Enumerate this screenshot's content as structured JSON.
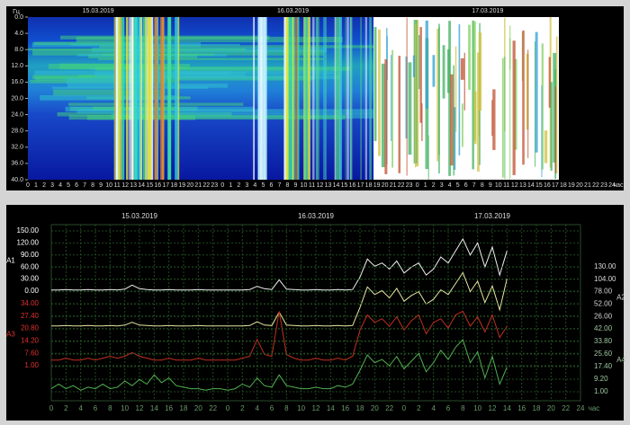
{
  "chart_data": [
    {
      "type": "spectrogram",
      "y_label": "Гц",
      "dates": [
        "15.03.2019",
        "16.03.2019",
        "17.03.2019"
      ],
      "x_unit": "час",
      "xlim": [
        0,
        72
      ],
      "xticks_by_day": [
        [
          0,
          1,
          2,
          3,
          4,
          5,
          6,
          7,
          8,
          9,
          10,
          11,
          12,
          13,
          14,
          15,
          16,
          17,
          18,
          19,
          20,
          21,
          22,
          23
        ],
        [
          0,
          1,
          2,
          3,
          4,
          5,
          6,
          7,
          8,
          9,
          10,
          11,
          12,
          13,
          14,
          15,
          16,
          17,
          18,
          19,
          20,
          21,
          22,
          23
        ],
        [
          0,
          1,
          2,
          3,
          4,
          5,
          6,
          7,
          8,
          9,
          10,
          11,
          12,
          13,
          14,
          15,
          16,
          17,
          18,
          19,
          20,
          21,
          22,
          23,
          24
        ]
      ],
      "ylim": [
        0,
        40
      ],
      "yticks": [
        {
          "value": 0,
          "label": "0.0"
        },
        {
          "value": 4,
          "label": "4.0"
        },
        {
          "value": 8,
          "label": "8.0"
        },
        {
          "value": 12,
          "label": "12.0"
        },
        {
          "value": 16,
          "label": "16.0"
        },
        {
          "value": 20,
          "label": "20.0"
        },
        {
          "value": 24,
          "label": "24.0"
        },
        {
          "value": 28,
          "label": "28.0"
        },
        {
          "value": 32,
          "label": "32.0"
        },
        {
          "value": 36,
          "label": "36.0"
        },
        {
          "value": 40,
          "label": "40.0"
        }
      ]
    },
    {
      "type": "line",
      "dates": [
        "15.03.2019",
        "16.03.2019",
        "17.03.2019"
      ],
      "x_unit": "час",
      "xlim": [
        0,
        72
      ],
      "xticks_by_day": [
        [
          0,
          2,
          4,
          6,
          8,
          10,
          12,
          14,
          16,
          18,
          20,
          22
        ],
        [
          0,
          2,
          4,
          6,
          8,
          10,
          12,
          14,
          16,
          18,
          20,
          22
        ],
        [
          0,
          2,
          4,
          6,
          8,
          10,
          12,
          14,
          16,
          18,
          20,
          22,
          24
        ]
      ],
      "grid": true,
      "x": [
        0,
        1,
        2,
        3,
        4,
        5,
        6,
        7,
        8,
        9,
        10,
        11,
        12,
        13,
        14,
        15,
        16,
        17,
        18,
        19,
        20,
        21,
        22,
        23,
        24,
        25,
        26,
        27,
        28,
        29,
        30,
        31,
        32,
        33,
        34,
        35,
        36,
        37,
        38,
        39,
        40,
        41,
        42,
        43,
        44,
        45,
        46,
        47,
        48,
        49,
        50,
        51,
        52,
        53,
        54,
        55,
        56,
        57,
        58,
        59,
        60,
        61,
        62
      ],
      "series": [
        {
          "name": "A1",
          "color": "#f0f0f0",
          "side": "left",
          "tick_color": "#ffffff",
          "ylim": [
            0,
            150
          ],
          "yticks": [
            {
              "value": 150,
              "label": "150.00"
            },
            {
              "value": 120,
              "label": "120.00"
            },
            {
              "value": 90,
              "label": "90.00"
            },
            {
              "value": 60,
              "label": "60.00"
            },
            {
              "value": 30,
              "label": "30.00"
            },
            {
              "value": 0,
              "label": "0.00"
            }
          ],
          "values": [
            3,
            3,
            4,
            3,
            3,
            4,
            3,
            3,
            4,
            3,
            5,
            15,
            6,
            4,
            3,
            3,
            4,
            3,
            3,
            3,
            4,
            3,
            3,
            3,
            3,
            3,
            3,
            4,
            12,
            6,
            4,
            28,
            5,
            4,
            3,
            3,
            4,
            3,
            3,
            4,
            3,
            4,
            35,
            80,
            62,
            70,
            55,
            75,
            45,
            60,
            70,
            40,
            55,
            85,
            70,
            100,
            130,
            90,
            120,
            60,
            110,
            40,
            100
          ]
        },
        {
          "name": "A2",
          "color": "#e6e6a0",
          "side": "right",
          "tick_color": "#d8d8d8",
          "ylim": [
            0,
            130
          ],
          "yticks": [
            {
              "value": 130,
              "label": "130.00"
            },
            {
              "value": 104,
              "label": "104.00"
            },
            {
              "value": 78,
              "label": "78.00"
            },
            {
              "value": 52,
              "label": "52.00"
            },
            {
              "value": 26,
              "label": "26.00"
            }
          ],
          "values": [
            6,
            6,
            7,
            6,
            6,
            7,
            6,
            6,
            7,
            6,
            8,
            14,
            8,
            7,
            6,
            6,
            7,
            6,
            6,
            6,
            7,
            6,
            6,
            6,
            6,
            6,
            6,
            7,
            15,
            8,
            7,
            35,
            8,
            7,
            6,
            6,
            7,
            6,
            6,
            7,
            6,
            7,
            45,
            88,
            72,
            80,
            65,
            85,
            58,
            70,
            78,
            52,
            62,
            82,
            72,
            95,
            118,
            78,
            100,
            55,
            90,
            40,
            105
          ]
        },
        {
          "name": "A3",
          "color": "#c03020",
          "side": "left",
          "tick_color": "#e03030",
          "ylim": [
            1,
            34
          ],
          "yticks": [
            {
              "value": 34,
              "label": "34.00"
            },
            {
              "value": 27.4,
              "label": "27.40"
            },
            {
              "value": 20.8,
              "label": "20.80"
            },
            {
              "value": 14.2,
              "label": "14.20"
            },
            {
              "value": 7.6,
              "label": "7.60"
            },
            {
              "value": 1,
              "label": "1.00"
            }
          ],
          "values": [
            4,
            4,
            5,
            4,
            4,
            5,
            4,
            5,
            6,
            5,
            6,
            8,
            6,
            5,
            4,
            4,
            5,
            4,
            4,
            4,
            5,
            4,
            4,
            4,
            4,
            4,
            5,
            6,
            15,
            7,
            6,
            30,
            7,
            5,
            4,
            4,
            5,
            4,
            4,
            5,
            4,
            6,
            20,
            28,
            24,
            26,
            22,
            27,
            20,
            25,
            28,
            18,
            24,
            26,
            21,
            28,
            30,
            22,
            27,
            19,
            28,
            16,
            22
          ]
        },
        {
          "name": "A4",
          "color": "#50b050",
          "side": "right",
          "tick_color": "#a0c8a0",
          "ylim": [
            1,
            42
          ],
          "yticks": [
            {
              "value": 42,
              "label": "42.00"
            },
            {
              "value": 33.8,
              "label": "33.80"
            },
            {
              "value": 25.6,
              "label": "25.60"
            },
            {
              "value": 17.4,
              "label": "17.40"
            },
            {
              "value": 9.2,
              "label": "9.20"
            },
            {
              "value": 1,
              "label": "1.00"
            }
          ],
          "values": [
            3,
            6,
            3,
            5,
            2,
            4,
            3,
            6,
            3,
            4,
            8,
            5,
            9,
            6,
            12,
            7,
            10,
            5,
            4,
            3,
            3,
            2,
            3,
            3,
            2,
            3,
            6,
            4,
            10,
            5,
            4,
            12,
            5,
            4,
            3,
            3,
            4,
            3,
            3,
            5,
            4,
            6,
            15,
            25,
            20,
            22,
            18,
            24,
            16,
            21,
            26,
            14,
            20,
            28,
            22,
            30,
            35,
            20,
            27,
            10,
            24,
            6,
            17
          ]
        }
      ]
    }
  ]
}
